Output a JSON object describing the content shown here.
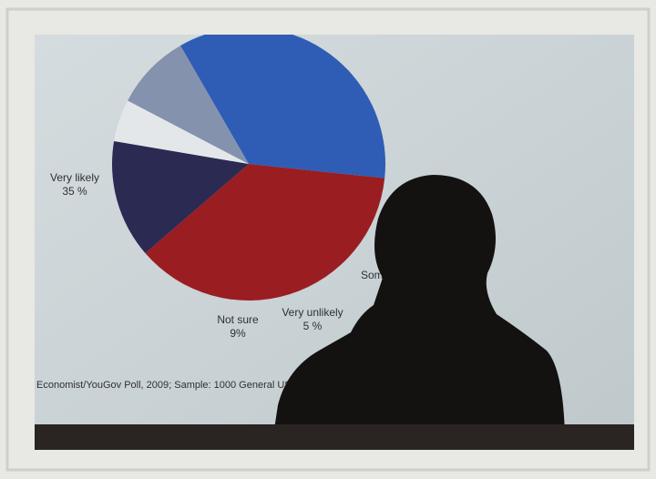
{
  "chart_data": {
    "type": "pie",
    "categories": [
      "Very likely",
      null,
      "Some",
      "Very unlikely",
      "Not sure"
    ],
    "values": [
      35,
      37,
      14,
      5,
      9
    ],
    "value_labels": [
      "35 %",
      null,
      null,
      "5 %",
      "9%"
    ],
    "colors": [
      "#2f5db5",
      "#9a1d22",
      "#2b2a52",
      "#e4e7ea",
      "#8592ae"
    ],
    "source": "Economist/YouGov Poll, 2009; Sample: 1000 General US P"
  }
}
